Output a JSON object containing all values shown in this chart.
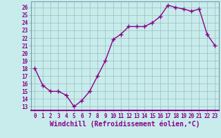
{
  "x": [
    0,
    1,
    2,
    3,
    4,
    5,
    6,
    7,
    8,
    9,
    10,
    11,
    12,
    13,
    14,
    15,
    16,
    17,
    18,
    19,
    20,
    21,
    22,
    23
  ],
  "y": [
    18.0,
    15.8,
    15.0,
    15.0,
    14.5,
    13.0,
    13.8,
    15.0,
    17.0,
    19.0,
    21.8,
    22.5,
    23.5,
    23.5,
    23.5,
    24.0,
    24.8,
    26.3,
    26.0,
    25.8,
    25.5,
    25.8,
    22.5,
    21.0
  ],
  "line_color": "#880088",
  "marker": "+",
  "marker_size": 4,
  "marker_linewidth": 1.0,
  "bg_color": "#c8ecec",
  "grid_color": "#99bbbb",
  "xlabel": "Windchill (Refroidissement éolien,°C)",
  "ylim": [
    12.5,
    26.8
  ],
  "xlim": [
    -0.5,
    23.5
  ],
  "yticks": [
    13,
    14,
    15,
    16,
    17,
    18,
    19,
    20,
    21,
    22,
    23,
    24,
    25,
    26
  ],
  "xticks": [
    0,
    1,
    2,
    3,
    4,
    5,
    6,
    7,
    8,
    9,
    10,
    11,
    12,
    13,
    14,
    15,
    16,
    17,
    18,
    19,
    20,
    21,
    22,
    23
  ],
  "tick_label_fontsize": 5.5,
  "xlabel_fontsize": 7.0,
  "line_width": 1.0,
  "spine_color": "#7799aa",
  "axis_line_color": "#7799aa"
}
